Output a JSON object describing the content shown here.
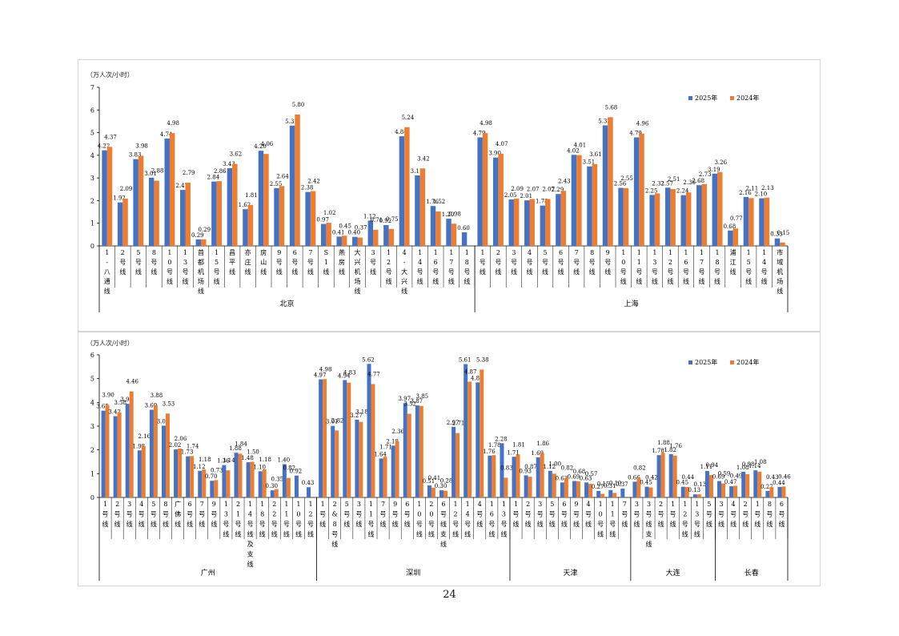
{
  "page_number": "24",
  "legend": {
    "s2025": "2025年",
    "s2024": "2024年"
  },
  "colors": {
    "s2025": "#4472C4",
    "s2024": "#ED7D31"
  },
  "chart_data": [
    {
      "type": "bar",
      "unit_label": "（万人次/小时）",
      "ylim": [
        0,
        7
      ],
      "yticks": [
        0,
        1,
        2,
        3,
        4,
        5,
        6,
        7
      ],
      "legend_position": "top-right",
      "series": [
        {
          "name": "2025年"
        },
        {
          "name": "2024年"
        }
      ],
      "groups": [
        {
          "name": "北京",
          "categories": [
            {
              "label": "1-八通线",
              "values": [
                4.22,
                4.37
              ]
            },
            {
              "label": "2号线",
              "values": [
                1.92,
                2.09
              ]
            },
            {
              "label": "5号线",
              "values": [
                3.83,
                3.98
              ]
            },
            {
              "label": "8号线",
              "values": [
                3.01,
                2.88
              ]
            },
            {
              "label": "10号线",
              "values": [
                4.74,
                4.98
              ]
            },
            {
              "label": "13号线",
              "values": [
                2.47,
                2.79
              ]
            },
            {
              "label": "首都机场线",
              "values": [
                0.29,
                0.29
              ]
            },
            {
              "label": "15号线",
              "values": [
                2.84,
                2.86
              ]
            },
            {
              "label": "昌平线",
              "values": [
                3.43,
                3.62
              ]
            },
            {
              "label": "亦庄线",
              "values": [
                1.62,
                1.81
              ]
            },
            {
              "label": "房山线",
              "values": [
                4.2,
                4.06
              ]
            },
            {
              "label": "9号线",
              "values": [
                2.55,
                2.64
              ]
            },
            {
              "label": "6号线",
              "values": [
                5.31,
                5.8
              ]
            },
            {
              "label": "7号线",
              "values": [
                2.38,
                2.42
              ]
            },
            {
              "label": "S1线",
              "values": [
                0.97,
                1.02
              ]
            },
            {
              "label": "燕房线",
              "values": [
                0.41,
                0.45
              ]
            },
            {
              "label": "大兴机场线",
              "values": [
                0.4,
                0.37
              ]
            },
            {
              "label": "3号线",
              "values": [
                1.12,
                0.71
              ]
            },
            {
              "label": "12号线",
              "values": [
                0.92,
                0.75
              ]
            },
            {
              "label": "4-大兴线",
              "values": [
                4.84,
                5.24
              ]
            },
            {
              "label": "14号线",
              "values": [
                3.11,
                3.42
              ]
            },
            {
              "label": "16号线",
              "values": [
                1.76,
                1.52
              ]
            },
            {
              "label": "17号线",
              "values": [
                1.2,
                0.98
              ]
            },
            {
              "label": "18号线",
              "values": [
                0.6,
                null
              ]
            }
          ]
        },
        {
          "name": "上海",
          "categories": [
            {
              "label": "1号线",
              "values": [
                4.79,
                4.98
              ]
            },
            {
              "label": "2号线",
              "values": [
                3.9,
                4.07
              ]
            },
            {
              "label": "3号线",
              "values": [
                2.05,
                2.09
              ]
            },
            {
              "label": "4号线",
              "values": [
                2.01,
                2.07
              ]
            },
            {
              "label": "5号线",
              "values": [
                1.78,
                2.07
              ]
            },
            {
              "label": "6号线",
              "values": [
                2.29,
                2.43
              ]
            },
            {
              "label": "7号线",
              "values": [
                4.02,
                4.01
              ]
            },
            {
              "label": "8号线",
              "values": [
                3.51,
                3.61
              ]
            },
            {
              "label": "9号线",
              "values": [
                5.32,
                5.68
              ]
            },
            {
              "label": "10号线",
              "values": [
                2.56,
                2.55
              ]
            },
            {
              "label": "11号线",
              "values": [
                4.79,
                4.96
              ]
            },
            {
              "label": "13号线",
              "values": [
                2.25,
                2.32
              ]
            },
            {
              "label": "12号线",
              "values": [
                2.57,
                2.51
              ]
            },
            {
              "label": "16号线",
              "values": [
                2.24,
                2.36
              ]
            },
            {
              "label": "17号线",
              "values": [
                2.68,
                2.73
              ]
            },
            {
              "label": "18号线",
              "values": [
                3.19,
                3.26
              ]
            },
            {
              "label": "浦江线",
              "values": [
                0.68,
                0.77
              ]
            },
            {
              "label": "15号线",
              "values": [
                2.16,
                2.11
              ]
            },
            {
              "label": "14号线",
              "values": [
                2.1,
                2.13
              ]
            },
            {
              "label": "市域机场线",
              "values": [
                0.33,
                0.15
              ]
            }
          ]
        }
      ]
    },
    {
      "type": "bar",
      "unit_label": "（万人次/小时）",
      "ylim": [
        0,
        6
      ],
      "yticks": [
        0,
        1,
        2,
        3,
        4,
        5,
        6
      ],
      "legend_position": "top-right",
      "series": [
        {
          "name": "2025年"
        },
        {
          "name": "2024年"
        }
      ],
      "groups": [
        {
          "name": "广州",
          "categories": [
            {
              "label": "1号线",
              "values": [
                3.65,
                3.9
              ]
            },
            {
              "label": "2号线",
              "values": [
                3.42,
                3.58
              ]
            },
            {
              "label": "3号线",
              "values": [
                3.94,
                4.46
              ]
            },
            {
              "label": "4号线",
              "values": [
                1.98,
                2.16
              ]
            },
            {
              "label": "5号线",
              "values": [
                3.69,
                3.88
              ]
            },
            {
              "label": "8号线",
              "values": [
                3.02,
                3.53
              ]
            },
            {
              "label": "广佛线",
              "values": [
                2.02,
                2.06
              ]
            },
            {
              "label": "6号线",
              "values": [
                1.73,
                1.74
              ]
            },
            {
              "label": "7号线",
              "values": [
                1.12,
                1.18
              ]
            },
            {
              "label": "9号线",
              "values": [
                0.7,
                0.73
              ]
            },
            {
              "label": "13号线",
              "values": [
                1.36,
                1.14
              ]
            },
            {
              "label": "21号线",
              "values": [
                1.88,
                1.84
              ]
            },
            {
              "label": "14号线及支线",
              "values": [
                1.48,
                1.5
              ]
            },
            {
              "label": "18号线",
              "values": [
                1.1,
                1.18
              ]
            },
            {
              "label": "22号线",
              "values": [
                0.3,
                0.35
              ]
            },
            {
              "label": "11号线",
              "values": [
                1.4,
                0.82
              ]
            },
            {
              "label": "10号线",
              "values": [
                0.92,
                null
              ]
            },
            {
              "label": "12号线",
              "values": [
                0.43,
                null
              ]
            }
          ]
        },
        {
          "name": "深圳",
          "categories": [
            {
              "label": "1号线",
              "values": [
                4.97,
                4.98
              ]
            },
            {
              "label": "2&8号线",
              "values": [
                3.01,
                2.82
              ]
            },
            {
              "label": "5号线",
              "values": [
                4.94,
                4.83
              ]
            },
            {
              "label": "3号线",
              "values": [
                3.27,
                3.18
              ]
            },
            {
              "label": "11号线",
              "values": [
                5.62,
                4.77
              ]
            },
            {
              "label": "7号线",
              "values": [
                1.64,
                1.71
              ]
            },
            {
              "label": "9号线",
              "values": [
                2.18,
                2.36
              ]
            },
            {
              "label": "6号线",
              "values": [
                3.97,
                3.52
              ]
            },
            {
              "label": "10号线",
              "values": [
                3.87,
                3.85
              ]
            },
            {
              "label": "20号线",
              "values": [
                0.51,
                0.41
              ]
            },
            {
              "label": "6号线支线",
              "values": [
                0.3,
                0.28
              ]
            },
            {
              "label": "12号线",
              "values": [
                2.97,
                2.71
              ]
            },
            {
              "label": "14号线",
              "values": [
                5.61,
                4.87
              ]
            },
            {
              "label": "4号线",
              "values": [
                4.84,
                5.38
              ]
            },
            {
              "label": "16号线",
              "values": [
                1.76,
                1.78
              ]
            },
            {
              "label": "13号线",
              "values": [
                2.28,
                0.83
              ]
            }
          ]
        },
        {
          "name": "天津",
          "categories": [
            {
              "label": "1号线",
              "values": [
                1.71,
                1.81
              ]
            },
            {
              "label": "2号线",
              "values": [
                0.93,
                0.87
              ]
            },
            {
              "label": "3号线",
              "values": [
                1.69,
                1.86
              ]
            },
            {
              "label": "5号线",
              "values": [
                1.12,
                1.0
              ]
            },
            {
              "label": "6号线",
              "values": [
                0.63,
                0.82
              ]
            },
            {
              "label": "9号线",
              "values": [
                0.69,
                0.68
              ]
            },
            {
              "label": "4号线",
              "values": [
                0.63,
                0.57
              ]
            },
            {
              "label": "10号线",
              "values": [
                0.27,
                0.15
              ]
            },
            {
              "label": "11号线",
              "values": [
                0.31,
                0.19
              ]
            },
            {
              "label": "7号线",
              "values": [
                0.37,
                null
              ]
            }
          ]
        },
        {
          "name": "大连",
          "categories": [
            {
              "label": "3号线",
              "values": [
                0.66,
                0.82
              ]
            },
            {
              "label": "3号线支线",
              "values": [
                0.45,
                0.42
              ]
            },
            {
              "label": "2号线",
              "values": [
                1.78,
                1.88
              ]
            },
            {
              "label": "1号线",
              "values": [
                1.82,
                1.76
              ]
            },
            {
              "label": "12号线",
              "values": [
                0.45,
                0.44
              ]
            },
            {
              "label": "13号线",
              "values": [
                0.13,
                0.13
              ]
            },
            {
              "label": "5号线",
              "values": [
                1.11,
                0.94
              ]
            }
          ]
        },
        {
          "name": "长春",
          "categories": [
            {
              "label": "3号线",
              "values": [
                0.69,
                0.59
              ]
            },
            {
              "label": "4号线",
              "values": [
                0.47,
                0.49
              ]
            },
            {
              "label": "2号线",
              "values": [
                1.08,
                0.98
              ]
            },
            {
              "label": "1号线",
              "values": [
                1.14,
                1.08
              ]
            },
            {
              "label": "8号线",
              "values": [
                0.27,
                0.43
              ]
            },
            {
              "label": "6号线",
              "values": [
                0.44,
                0.46
              ]
            }
          ]
        }
      ]
    }
  ]
}
